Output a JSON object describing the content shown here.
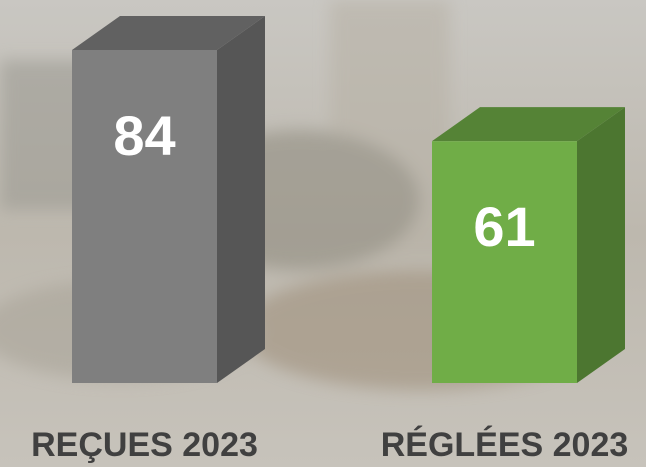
{
  "chart_data": {
    "type": "bar3d",
    "categories": [
      "REÇUES 2023",
      "RÉGLÉES 2023"
    ],
    "values": [
      84,
      61
    ],
    "colors": [
      "#7f7f7f",
      "#70ad47"
    ]
  }
}
